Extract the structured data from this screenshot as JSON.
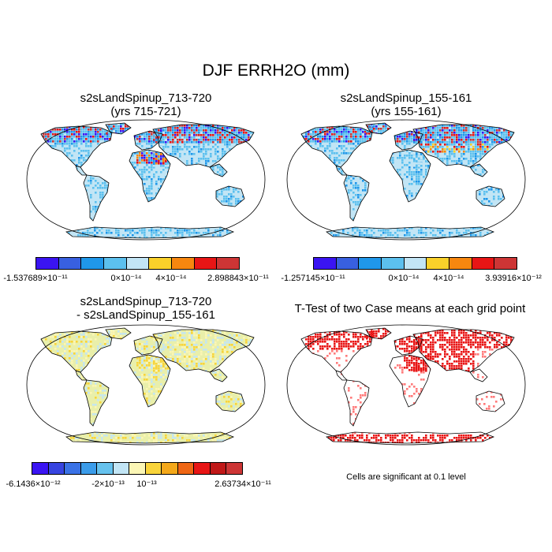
{
  "title": "DJF ERRH2O (mm)",
  "panels": [
    {
      "title_line1": "s2sLandSpinup_713-720",
      "title_line2": "(yrs 715-721)",
      "colorbar": {
        "colors": [
          "#3a14f2",
          "#3860e0",
          "#1f97ea",
          "#5cc0ee",
          "#c2e5f5",
          "#fad12a",
          "#f7870f",
          "#e81515",
          "#cd3535"
        ],
        "labels": [
          "-1.537689×10⁻¹¹",
          "0×10⁻¹⁴",
          "4×10⁻¹⁴",
          "2.898843×10⁻¹¹"
        ]
      }
    },
    {
      "title_line1": "s2sLandSpinup_155-161",
      "title_line2": "(yrs 155-161)",
      "colorbar": {
        "colors": [
          "#3a14f2",
          "#3860e0",
          "#1f97ea",
          "#5cc0ee",
          "#c2e5f5",
          "#fad12a",
          "#f7870f",
          "#e81515",
          "#cd3535"
        ],
        "labels": [
          "-1.257145×10⁻¹¹",
          "0×10⁻¹⁴",
          "4×10⁻¹⁴",
          "3.93916×10⁻¹²"
        ]
      }
    },
    {
      "title_line1": "s2sLandSpinup_713-720",
      "title_line2": "- s2sLandSpinup_155-161",
      "colorbar": {
        "colors": [
          "#3a14f2",
          "#3744e0",
          "#3a72e6",
          "#3b9cea",
          "#66c2ee",
          "#c2e5f5",
          "#fbf6b5",
          "#f9d43a",
          "#f4a81a",
          "#ef6614",
          "#e81515",
          "#c01818",
          "#cd3535"
        ],
        "labels": [
          "-6.1436×10⁻¹²",
          "-2×10⁻¹³",
          "10⁻¹³",
          "2.63734×10⁻¹¹"
        ]
      }
    },
    {
      "title_line1": "T-Test of two Case means at each grid point",
      "note": "Cells are significant at 0.1 level"
    }
  ]
}
